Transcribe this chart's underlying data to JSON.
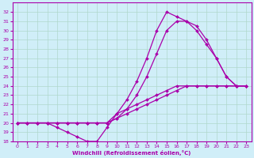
{
  "xlabel": "Windchill (Refroidissement éolien,°C)",
  "xlim": [
    -0.5,
    23.5
  ],
  "ylim": [
    18,
    33
  ],
  "xticks": [
    0,
    1,
    2,
    3,
    4,
    5,
    6,
    7,
    8,
    9,
    10,
    11,
    12,
    13,
    14,
    15,
    16,
    17,
    18,
    19,
    20,
    21,
    22,
    23
  ],
  "yticks": [
    18,
    19,
    20,
    21,
    22,
    23,
    24,
    25,
    26,
    27,
    28,
    29,
    30,
    31,
    32
  ],
  "bg_color": "#d0eef8",
  "line_color": "#aa00aa",
  "grid_color": "#b0d8cc",
  "lines": [
    {
      "x": [
        0,
        1,
        2,
        3,
        4,
        5,
        6,
        7,
        8,
        9,
        10,
        11,
        12,
        13,
        14,
        15,
        16,
        17,
        18,
        19,
        20,
        21,
        22,
        23
      ],
      "y": [
        20,
        20,
        20,
        20,
        19.5,
        19,
        18.5,
        18,
        18,
        19.5,
        21,
        21.5,
        22,
        22.5,
        23,
        23.5,
        24,
        24,
        24,
        24,
        24,
        24,
        24,
        24
      ]
    },
    {
      "x": [
        0,
        1,
        2,
        3,
        4,
        5,
        6,
        7,
        8,
        9,
        10,
        11,
        12,
        13,
        14,
        15,
        16,
        17,
        18,
        19,
        20,
        21,
        22,
        23
      ],
      "y": [
        20,
        20,
        20,
        20,
        20,
        20,
        20,
        20,
        20,
        20,
        20.5,
        21,
        21.5,
        22,
        22.5,
        23,
        23.5,
        24,
        24,
        24,
        24,
        24,
        24,
        24
      ]
    },
    {
      "x": [
        0,
        1,
        2,
        3,
        4,
        5,
        6,
        7,
        8,
        9,
        10,
        11,
        12,
        13,
        14,
        15,
        16,
        17,
        18,
        19,
        20,
        21,
        22,
        23
      ],
      "y": [
        20,
        20,
        20,
        20,
        20,
        20,
        20,
        20,
        20,
        20,
        20.5,
        21.5,
        23,
        25,
        27.5,
        30,
        31,
        31,
        30.5,
        29,
        27,
        25,
        24,
        24
      ]
    },
    {
      "x": [
        0,
        1,
        2,
        3,
        4,
        5,
        6,
        7,
        8,
        9,
        10,
        11,
        12,
        13,
        14,
        15,
        16,
        17,
        18,
        19,
        20,
        21,
        22,
        23
      ],
      "y": [
        20,
        20,
        20,
        20,
        20,
        20,
        20,
        20,
        20,
        20,
        21,
        22.5,
        24.5,
        27,
        30,
        32,
        31.5,
        31,
        30,
        28.5,
        27,
        25,
        24,
        24
      ]
    }
  ],
  "marker": "D",
  "markersize": 2.0,
  "linewidth": 0.9,
  "tick_fontsize": 4.5,
  "xlabel_fontsize": 5.0,
  "xlabel_fontweight": "bold"
}
